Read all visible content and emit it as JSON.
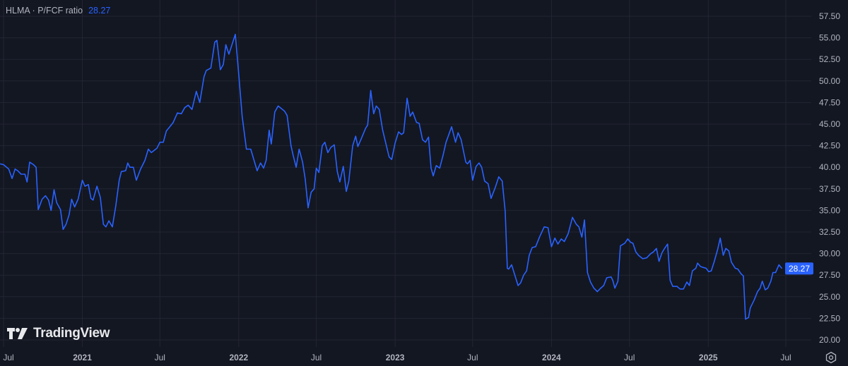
{
  "legend": {
    "symbol": "HLMA",
    "separator": "·",
    "metric": "P/FCF ratio",
    "last_value": "28.27"
  },
  "branding": {
    "logo_text": "TradingView"
  },
  "colors": {
    "background": "#131722",
    "line": "#2962ff",
    "grid": "#232632",
    "axis_text": "#b2b5be",
    "price_label_bg": "#2962ff"
  },
  "icons": {
    "settings": "gear-icon",
    "logo": "tradingview-logo-icon"
  },
  "chart_data": {
    "type": "line",
    "title": "HLMA · P/FCF ratio",
    "ylim": [
      20,
      57.5
    ],
    "y_ticks": [
      "57.50",
      "55.00",
      "52.50",
      "50.00",
      "47.50",
      "45.00",
      "42.50",
      "40.00",
      "37.50",
      "35.00",
      "32.50",
      "30.00",
      "27.50",
      "25.00",
      "22.50",
      "20.00"
    ],
    "x_ticks": [
      {
        "label": "Jul",
        "date": "2020-07-01",
        "bold": false
      },
      {
        "label": "2021",
        "date": "2021-01-01",
        "bold": true
      },
      {
        "label": "Jul",
        "date": "2021-07-01",
        "bold": false
      },
      {
        "label": "2022",
        "date": "2022-01-01",
        "bold": true
      },
      {
        "label": "Jul",
        "date": "2022-07-01",
        "bold": false
      },
      {
        "label": "2023",
        "date": "2023-01-01",
        "bold": true
      },
      {
        "label": "Jul",
        "date": "2023-07-01",
        "bold": false
      },
      {
        "label": "2024",
        "date": "2024-01-01",
        "bold": true
      },
      {
        "label": "Jul",
        "date": "2024-07-01",
        "bold": false
      },
      {
        "label": "2025",
        "date": "2025-01-01",
        "bold": true
      },
      {
        "label": "Jul",
        "date": "2025-07-01",
        "bold": false
      }
    ],
    "grid": true,
    "last_value_label": "28.27",
    "points": [
      [
        "2020-06-23",
        40.4
      ],
      [
        "2020-07-01",
        40.3
      ],
      [
        "2020-07-13",
        39.8
      ],
      [
        "2020-07-21",
        38.7
      ],
      [
        "2020-07-28",
        39.8
      ],
      [
        "2020-08-03",
        39.6
      ],
      [
        "2020-08-11",
        39.2
      ],
      [
        "2020-08-20",
        39.2
      ],
      [
        "2020-08-25",
        38.3
      ],
      [
        "2020-08-31",
        40.6
      ],
      [
        "2020-09-09",
        40.3
      ],
      [
        "2020-09-15",
        40.0
      ],
      [
        "2020-09-20",
        35.1
      ],
      [
        "2020-09-29",
        36.3
      ],
      [
        "2020-10-07",
        36.7
      ],
      [
        "2020-10-14",
        36.2
      ],
      [
        "2020-10-20",
        35.0
      ],
      [
        "2020-10-27",
        37.4
      ],
      [
        "2020-11-02",
        35.9
      ],
      [
        "2020-11-11",
        35.1
      ],
      [
        "2020-11-17",
        32.8
      ],
      [
        "2020-11-24",
        33.4
      ],
      [
        "2020-12-01",
        34.5
      ],
      [
        "2020-12-07",
        36.3
      ],
      [
        "2020-12-14",
        35.4
      ],
      [
        "2020-12-22",
        36.3
      ],
      [
        "2021-01-01",
        38.5
      ],
      [
        "2021-01-07",
        37.8
      ],
      [
        "2021-01-15",
        38.0
      ],
      [
        "2021-01-21",
        36.4
      ],
      [
        "2021-01-26",
        36.2
      ],
      [
        "2021-02-04",
        37.8
      ],
      [
        "2021-02-12",
        36.5
      ],
      [
        "2021-02-19",
        33.4
      ],
      [
        "2021-02-25",
        33.1
      ],
      [
        "2021-03-04",
        33.8
      ],
      [
        "2021-03-12",
        33.1
      ],
      [
        "2021-03-20",
        35.5
      ],
      [
        "2021-03-28",
        38.5
      ],
      [
        "2021-04-02",
        39.5
      ],
      [
        "2021-04-12",
        39.6
      ],
      [
        "2021-04-17",
        40.5
      ],
      [
        "2021-04-22",
        40.0
      ],
      [
        "2021-04-30",
        40.0
      ],
      [
        "2021-05-07",
        38.5
      ],
      [
        "2021-05-17",
        39.8
      ],
      [
        "2021-05-27",
        40.8
      ],
      [
        "2021-06-04",
        42.1
      ],
      [
        "2021-06-11",
        41.7
      ],
      [
        "2021-06-24",
        42.2
      ],
      [
        "2021-07-01",
        42.9
      ],
      [
        "2021-07-09",
        42.9
      ],
      [
        "2021-07-16",
        44.2
      ],
      [
        "2021-07-26",
        44.8
      ],
      [
        "2021-08-01",
        45.2
      ],
      [
        "2021-08-11",
        46.3
      ],
      [
        "2021-08-20",
        46.2
      ],
      [
        "2021-08-28",
        46.9
      ],
      [
        "2021-09-05",
        47.2
      ],
      [
        "2021-09-14",
        46.7
      ],
      [
        "2021-09-24",
        48.8
      ],
      [
        "2021-10-02",
        47.5
      ],
      [
        "2021-10-12",
        50.5
      ],
      [
        "2021-10-17",
        51.2
      ],
      [
        "2021-10-28",
        51.5
      ],
      [
        "2021-11-06",
        54.5
      ],
      [
        "2021-11-11",
        54.7
      ],
      [
        "2021-11-19",
        51.3
      ],
      [
        "2021-11-26",
        51.9
      ],
      [
        "2021-12-02",
        54.2
      ],
      [
        "2021-12-09",
        53.1
      ],
      [
        "2021-12-24",
        55.4
      ],
      [
        "2022-01-01",
        50.8
      ],
      [
        "2022-01-09",
        45.9
      ],
      [
        "2022-01-19",
        42.1
      ],
      [
        "2022-01-29",
        42.1
      ],
      [
        "2022-02-13",
        39.6
      ],
      [
        "2022-02-21",
        40.5
      ],
      [
        "2022-02-28",
        39.9
      ],
      [
        "2022-03-06",
        40.8
      ],
      [
        "2022-03-13",
        44.3
      ],
      [
        "2022-03-18",
        42.7
      ],
      [
        "2022-03-26",
        46.4
      ],
      [
        "2022-04-03",
        47.1
      ],
      [
        "2022-04-18",
        46.5
      ],
      [
        "2022-04-24",
        46.0
      ],
      [
        "2022-05-03",
        42.5
      ],
      [
        "2022-05-08",
        41.4
      ],
      [
        "2022-05-15",
        40.0
      ],
      [
        "2022-05-22",
        42.1
      ],
      [
        "2022-05-30",
        40.6
      ],
      [
        "2022-06-05",
        38.7
      ],
      [
        "2022-06-12",
        35.3
      ],
      [
        "2022-06-19",
        37.1
      ],
      [
        "2022-06-26",
        37.5
      ],
      [
        "2022-07-01",
        39.9
      ],
      [
        "2022-07-07",
        39.4
      ],
      [
        "2022-07-15",
        42.5
      ],
      [
        "2022-07-21",
        42.9
      ],
      [
        "2022-07-28",
        41.7
      ],
      [
        "2022-08-04",
        42.3
      ],
      [
        "2022-08-12",
        42.6
      ],
      [
        "2022-08-19",
        39.5
      ],
      [
        "2022-08-25",
        38.3
      ],
      [
        "2022-09-02",
        40.1
      ],
      [
        "2022-09-09",
        37.2
      ],
      [
        "2022-09-15",
        38.4
      ],
      [
        "2022-09-24",
        42.5
      ],
      [
        "2022-10-01",
        43.6
      ],
      [
        "2022-10-06",
        42.4
      ],
      [
        "2022-10-14",
        43.3
      ],
      [
        "2022-10-24",
        44.5
      ],
      [
        "2022-10-29",
        44.9
      ],
      [
        "2022-11-05",
        48.9
      ],
      [
        "2022-11-12",
        46.2
      ],
      [
        "2022-11-18",
        47.1
      ],
      [
        "2022-11-25",
        46.7
      ],
      [
        "2022-12-03",
        44.3
      ],
      [
        "2022-12-18",
        41.2
      ],
      [
        "2022-12-24",
        40.9
      ],
      [
        "2023-01-01",
        42.8
      ],
      [
        "2023-01-09",
        44.1
      ],
      [
        "2023-01-16",
        43.8
      ],
      [
        "2023-01-21",
        44.0
      ],
      [
        "2023-01-29",
        48.0
      ],
      [
        "2023-02-05",
        45.9
      ],
      [
        "2023-02-11",
        46.4
      ],
      [
        "2023-02-20",
        45.2
      ],
      [
        "2023-02-26",
        45.1
      ],
      [
        "2023-03-06",
        43.2
      ],
      [
        "2023-03-13",
        42.9
      ],
      [
        "2023-03-20",
        43.5
      ],
      [
        "2023-03-26",
        39.9
      ],
      [
        "2023-03-31",
        39.0
      ],
      [
        "2023-04-07",
        40.2
      ],
      [
        "2023-04-15",
        39.9
      ],
      [
        "2023-04-23",
        41.4
      ],
      [
        "2023-04-30",
        42.9
      ],
      [
        "2023-05-13",
        44.7
      ],
      [
        "2023-05-22",
        42.9
      ],
      [
        "2023-05-28",
        44.0
      ],
      [
        "2023-06-04",
        43.2
      ],
      [
        "2023-06-15",
        40.6
      ],
      [
        "2023-06-19",
        40.4
      ],
      [
        "2023-06-25",
        40.8
      ],
      [
        "2023-07-01",
        38.5
      ],
      [
        "2023-07-09",
        40.1
      ],
      [
        "2023-07-16",
        40.5
      ],
      [
        "2023-07-22",
        40.0
      ],
      [
        "2023-07-29",
        38.4
      ],
      [
        "2023-08-06",
        38.1
      ],
      [
        "2023-08-13",
        36.4
      ],
      [
        "2023-08-23",
        37.7
      ],
      [
        "2023-08-31",
        38.9
      ],
      [
        "2023-09-08",
        38.4
      ],
      [
        "2023-09-15",
        34.9
      ],
      [
        "2023-09-20",
        28.3
      ],
      [
        "2023-09-23",
        28.2
      ],
      [
        "2023-09-30",
        28.7
      ],
      [
        "2023-10-15",
        26.3
      ],
      [
        "2023-10-21",
        26.6
      ],
      [
        "2023-10-28",
        27.5
      ],
      [
        "2023-11-04",
        28.0
      ],
      [
        "2023-11-10",
        29.8
      ],
      [
        "2023-11-17",
        30.7
      ],
      [
        "2023-11-25",
        30.8
      ],
      [
        "2023-12-04",
        31.9
      ],
      [
        "2023-12-15",
        33.1
      ],
      [
        "2023-12-24",
        33.0
      ],
      [
        "2024-01-01",
        30.8
      ],
      [
        "2024-01-09",
        31.8
      ],
      [
        "2024-01-16",
        31.1
      ],
      [
        "2024-01-24",
        31.7
      ],
      [
        "2024-01-31",
        31.4
      ],
      [
        "2024-02-09",
        32.3
      ],
      [
        "2024-02-19",
        34.2
      ],
      [
        "2024-02-28",
        33.4
      ],
      [
        "2024-03-05",
        33.1
      ],
      [
        "2024-03-12",
        31.9
      ],
      [
        "2024-03-18",
        33.9
      ],
      [
        "2024-03-25",
        27.8
      ],
      [
        "2024-04-01",
        26.7
      ],
      [
        "2024-04-09",
        26.0
      ],
      [
        "2024-04-17",
        25.6
      ],
      [
        "2024-04-25",
        26.0
      ],
      [
        "2024-05-02",
        26.3
      ],
      [
        "2024-05-09",
        27.2
      ],
      [
        "2024-05-19",
        27.3
      ],
      [
        "2024-05-23",
        26.9
      ],
      [
        "2024-05-28",
        26.0
      ],
      [
        "2024-06-04",
        26.8
      ],
      [
        "2024-06-10",
        30.9
      ],
      [
        "2024-06-20",
        31.2
      ],
      [
        "2024-06-27",
        31.7
      ],
      [
        "2024-07-04",
        31.3
      ],
      [
        "2024-07-09",
        31.2
      ],
      [
        "2024-07-16",
        30.2
      ],
      [
        "2024-07-22",
        29.8
      ],
      [
        "2024-08-01",
        29.4
      ],
      [
        "2024-08-10",
        29.5
      ],
      [
        "2024-08-20",
        30.0
      ],
      [
        "2024-08-26",
        30.2
      ],
      [
        "2024-09-02",
        30.6
      ],
      [
        "2024-09-08",
        29.1
      ],
      [
        "2024-09-15",
        30.1
      ],
      [
        "2024-09-21",
        30.6
      ],
      [
        "2024-09-28",
        31.1
      ],
      [
        "2024-10-04",
        26.9
      ],
      [
        "2024-10-10",
        26.2
      ],
      [
        "2024-10-20",
        26.2
      ],
      [
        "2024-10-27",
        25.9
      ],
      [
        "2024-11-04",
        25.9
      ],
      [
        "2024-11-12",
        26.7
      ],
      [
        "2024-11-18",
        26.3
      ],
      [
        "2024-11-25",
        28.0
      ],
      [
        "2024-12-03",
        28.3
      ],
      [
        "2024-12-07",
        28.9
      ],
      [
        "2024-12-14",
        28.5
      ],
      [
        "2024-12-20",
        28.4
      ],
      [
        "2024-12-27",
        28.3
      ],
      [
        "2025-01-02",
        27.9
      ],
      [
        "2025-01-08",
        28.0
      ],
      [
        "2025-01-15",
        29.1
      ],
      [
        "2025-01-23",
        30.5
      ],
      [
        "2025-01-29",
        31.8
      ],
      [
        "2025-02-05",
        29.8
      ],
      [
        "2025-02-11",
        30.6
      ],
      [
        "2025-02-18",
        30.3
      ],
      [
        "2025-02-24",
        29.0
      ],
      [
        "2025-03-05",
        28.3
      ],
      [
        "2025-03-11",
        28.2
      ],
      [
        "2025-03-18",
        27.7
      ],
      [
        "2025-03-24",
        27.4
      ],
      [
        "2025-03-29",
        22.4
      ],
      [
        "2025-04-05",
        22.6
      ],
      [
        "2025-04-09",
        23.7
      ],
      [
        "2025-04-18",
        24.6
      ],
      [
        "2025-04-26",
        25.6
      ],
      [
        "2025-05-02",
        26.0
      ],
      [
        "2025-05-07",
        26.8
      ],
      [
        "2025-05-14",
        25.8
      ],
      [
        "2025-05-20",
        26.0
      ],
      [
        "2025-05-27",
        26.8
      ],
      [
        "2025-06-01",
        27.8
      ],
      [
        "2025-06-07",
        27.8
      ],
      [
        "2025-06-15",
        28.7
      ],
      [
        "2025-06-22",
        28.27
      ]
    ]
  }
}
